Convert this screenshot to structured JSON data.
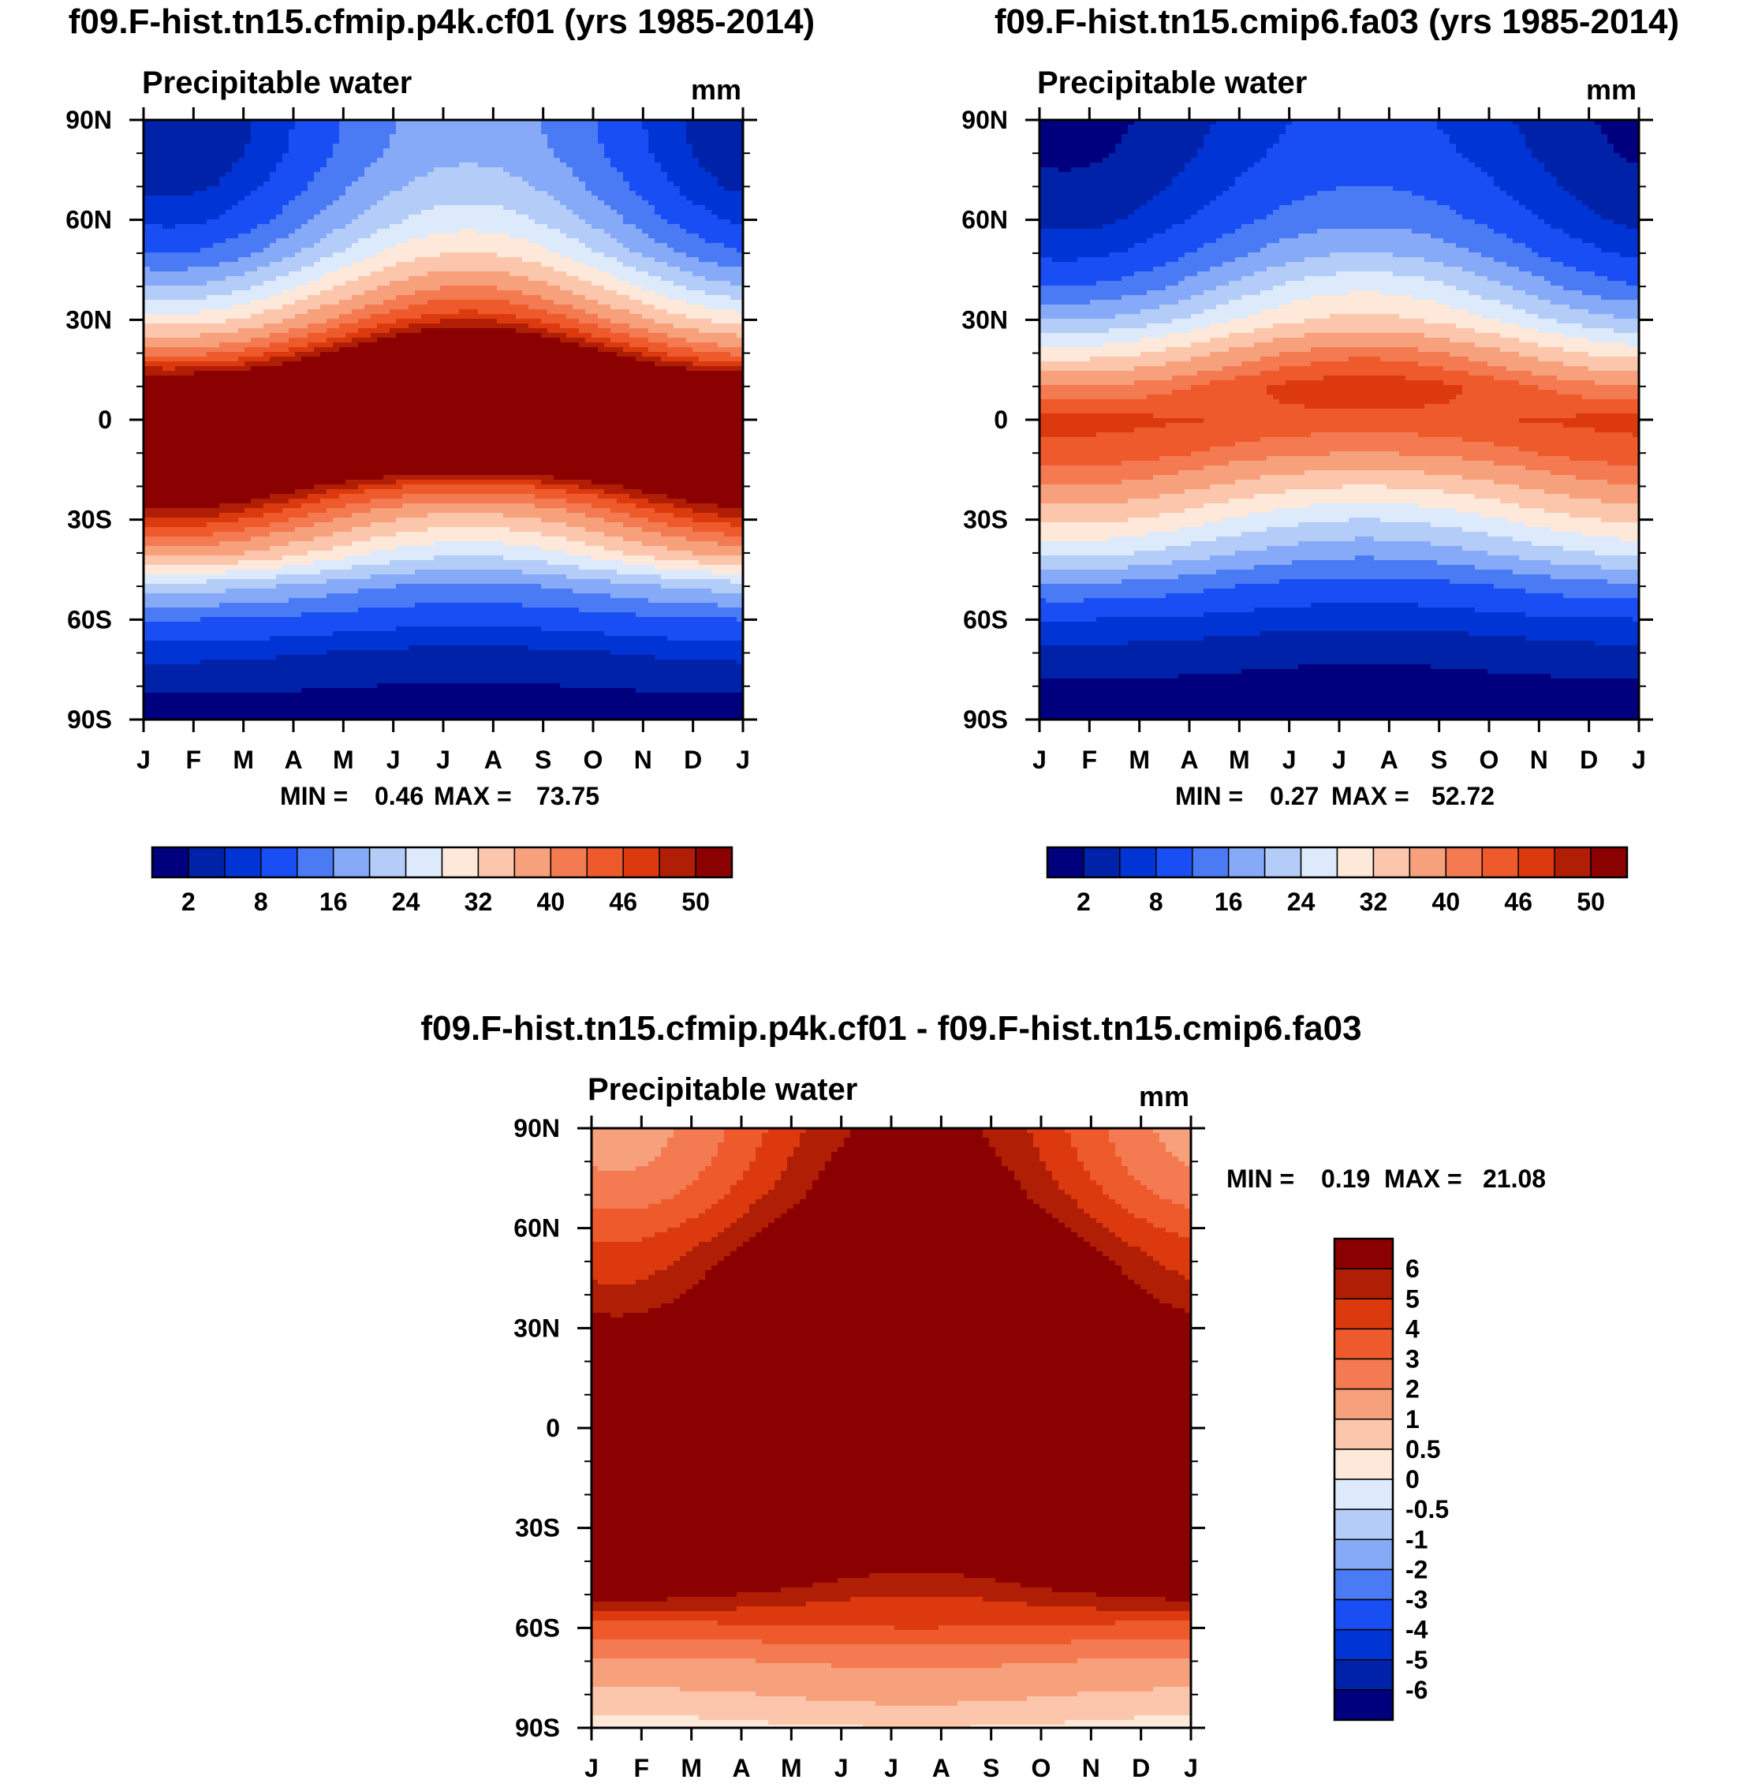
{
  "chart_data": [
    {
      "type": "heatmap",
      "title": "f09.F-hist.tn15.cfmip.p4k.cf01 (yrs 1985-2014)",
      "subtitle": "Precipitable water",
      "units": "mm",
      "x": [
        "J",
        "F",
        "M",
        "A",
        "M",
        "J",
        "J",
        "A",
        "S",
        "O",
        "N",
        "D",
        "J"
      ],
      "y_ticks": [
        "90N",
        "60N",
        "30N",
        "0",
        "30S",
        "60S",
        "90S"
      ],
      "ylim": [
        -90,
        90
      ],
      "min_label": "MIN =",
      "min_value": "0.46",
      "max_label": "MAX =",
      "max_value": "73.75",
      "levels": [
        2,
        5,
        8,
        12,
        16,
        20,
        24,
        28,
        32,
        36,
        40,
        43,
        46,
        48,
        50
      ],
      "colorbar_labels": [
        "2",
        "8",
        "16",
        "24",
        "32",
        "40",
        "46",
        "50"
      ],
      "colorbar_colors": [
        "#00007f",
        "#0022a8",
        "#0034d4",
        "#1a4ef5",
        "#4a7bf5",
        "#86aaf7",
        "#b4ccf8",
        "#dceafb",
        "#fde8da",
        "#fbc6ab",
        "#f7a07c",
        "#f47a52",
        "#ee5a2c",
        "#dc3a0e",
        "#b01e05",
        "#8b0000"
      ],
      "profile_lat": [
        -90,
        -80,
        -70,
        -60,
        -50,
        -40,
        -30,
        -20,
        -10,
        0,
        10,
        20,
        30,
        40,
        50,
        60,
        70,
        80,
        90
      ],
      "profile_jan": [
        0.5,
        2.5,
        6,
        12,
        22,
        38,
        48,
        55,
        62,
        65,
        55,
        42,
        30,
        20,
        12,
        7,
        4,
        2.5,
        2
      ],
      "profile_jul": [
        0.5,
        1.8,
        4,
        9,
        15,
        25,
        34,
        45,
        58,
        66,
        63,
        57,
        48,
        40,
        32,
        26,
        22,
        19,
        18
      ],
      "colors": {
        "axis": "#000000"
      }
    },
    {
      "type": "heatmap",
      "title": "f09.F-hist.tn15.cmip6.fa03 (yrs 1985-2014)",
      "subtitle": "Precipitable water",
      "units": "mm",
      "x": [
        "J",
        "F",
        "M",
        "A",
        "M",
        "J",
        "J",
        "A",
        "S",
        "O",
        "N",
        "D",
        "J"
      ],
      "y_ticks": [
        "90N",
        "60N",
        "30N",
        "0",
        "30S",
        "60S",
        "90S"
      ],
      "ylim": [
        -90,
        90
      ],
      "min_label": "MIN =",
      "min_value": "0.27",
      "max_label": "MAX =",
      "max_value": "52.72",
      "levels": [
        2,
        5,
        8,
        12,
        16,
        20,
        24,
        28,
        32,
        36,
        40,
        43,
        46,
        48,
        50
      ],
      "colorbar_labels": [
        "2",
        "8",
        "16",
        "24",
        "32",
        "40",
        "46",
        "50"
      ],
      "colorbar_colors": [
        "#00007f",
        "#0022a8",
        "#0034d4",
        "#1a4ef5",
        "#4a7bf5",
        "#86aaf7",
        "#b4ccf8",
        "#dceafb",
        "#fde8da",
        "#fbc6ab",
        "#f7a07c",
        "#f47a52",
        "#ee5a2c",
        "#dc3a0e",
        "#b01e05",
        "#8b0000"
      ],
      "profile_lat": [
        -90,
        -80,
        -70,
        -60,
        -50,
        -40,
        -30,
        -20,
        -10,
        0,
        10,
        20,
        30,
        40,
        50,
        60,
        70,
        80,
        90
      ],
      "profile_jan": [
        0.3,
        1.5,
        4,
        8,
        15,
        25,
        33,
        40,
        45,
        47,
        40,
        30,
        20,
        12,
        7,
        4,
        2.5,
        1.5,
        1
      ],
      "profile_jul": [
        0.3,
        1,
        2.5,
        6,
        10,
        17,
        24,
        32,
        40,
        45,
        48,
        42,
        33,
        27,
        20,
        15,
        12,
        10,
        9
      ],
      "colors": {
        "axis": "#000000"
      }
    },
    {
      "type": "heatmap",
      "title": "f09.F-hist.tn15.cfmip.p4k.cf01 - f09.F-hist.tn15.cmip6.fa03",
      "subtitle": "Precipitable water",
      "units": "mm",
      "x": [
        "J",
        "F",
        "M",
        "A",
        "M",
        "J",
        "J",
        "A",
        "S",
        "O",
        "N",
        "D",
        "J"
      ],
      "y_ticks": [
        "90N",
        "60N",
        "30N",
        "0",
        "30S",
        "60S",
        "90S"
      ],
      "ylim": [
        -90,
        90
      ],
      "min_label": "MIN =",
      "min_value": "0.19",
      "max_label": "MAX =",
      "max_value": "21.08",
      "levels": [
        -6,
        -5,
        -4,
        -3,
        -2,
        -1,
        -0.5,
        0,
        0.5,
        1,
        2,
        3,
        4,
        5,
        6
      ],
      "colorbar_labels": [
        "6",
        "5",
        "4",
        "3",
        "2",
        "1",
        "0.5",
        "0",
        "-0.5",
        "-1",
        "-2",
        "-3",
        "-4",
        "-5",
        "-6"
      ],
      "colorbar_colors": [
        "#00007f",
        "#0022a8",
        "#0034d4",
        "#1a4ef5",
        "#4a7bf5",
        "#86aaf7",
        "#b4ccf8",
        "#dceafb",
        "#fde8da",
        "#fbc6ab",
        "#f7a07c",
        "#f47a52",
        "#ee5a2c",
        "#dc3a0e",
        "#b01e05",
        "#8b0000"
      ],
      "profile_lat": [
        -90,
        -80,
        -70,
        -60,
        -50,
        -40,
        -30,
        -20,
        -10,
        0,
        10,
        20,
        30,
        40,
        50,
        60,
        70,
        80,
        90
      ],
      "profile_jan": [
        0.3,
        0.8,
        1.8,
        3.5,
        6.5,
        10,
        14,
        16,
        18,
        18,
        15,
        10,
        6.5,
        5.2,
        4.5,
        3.6,
        2.5,
        1.8,
        1.5
      ],
      "profile_jul": [
        0.5,
        1.2,
        2.2,
        4,
        5,
        6.5,
        10,
        14,
        18,
        20,
        19,
        17,
        14,
        12,
        10,
        8.5,
        7.5,
        7,
        6.5
      ],
      "colors": {
        "axis": "#000000"
      }
    }
  ]
}
